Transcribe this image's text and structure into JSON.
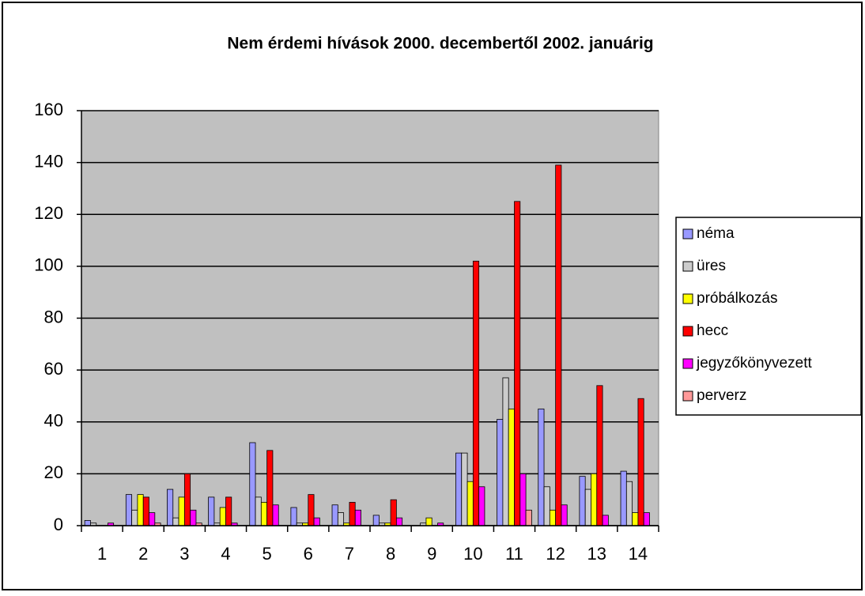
{
  "chart_data": {
    "type": "bar",
    "title": "Nem érdemi hívások 2000. decembertől 2002. januárig",
    "categories": [
      "1",
      "2",
      "3",
      "4",
      "5",
      "6",
      "7",
      "8",
      "9",
      "10",
      "11",
      "12",
      "13",
      "14"
    ],
    "series": [
      {
        "name": "néma",
        "color": "#9999ff",
        "values": [
          2,
          12,
          14,
          11,
          32,
          7,
          8,
          4,
          0,
          28,
          41,
          45,
          19,
          21
        ]
      },
      {
        "name": "üres",
        "color": "#cccccc",
        "values": [
          1,
          6,
          3,
          1,
          11,
          1,
          5,
          1,
          1,
          28,
          57,
          15,
          14,
          17
        ]
      },
      {
        "name": "próbálkozás",
        "color": "#ffff00",
        "values": [
          0,
          12,
          11,
          7,
          9,
          1,
          1,
          1,
          3,
          17,
          45,
          6,
          20,
          5
        ]
      },
      {
        "name": "hecc",
        "color": "#ff0000",
        "values": [
          0,
          11,
          20,
          11,
          29,
          12,
          9,
          10,
          0,
          102,
          125,
          139,
          54,
          49
        ]
      },
      {
        "name": "jegyzőkönyvezett",
        "color": "#ff00ff",
        "values": [
          1,
          5,
          6,
          1,
          8,
          3,
          6,
          3,
          1,
          15,
          20,
          8,
          4,
          5
        ]
      },
      {
        "name": "perverz",
        "color": "#ff9999",
        "values": [
          0,
          1,
          1,
          0,
          0,
          0,
          0,
          0,
          0,
          0,
          6,
          0,
          0,
          0
        ]
      }
    ],
    "ylim": [
      0,
      160
    ],
    "yticks": [
      0,
      20,
      40,
      60,
      80,
      100,
      120,
      140,
      160
    ],
    "grid": true,
    "plot_background": "#c0c0c0",
    "legend": "right"
  }
}
